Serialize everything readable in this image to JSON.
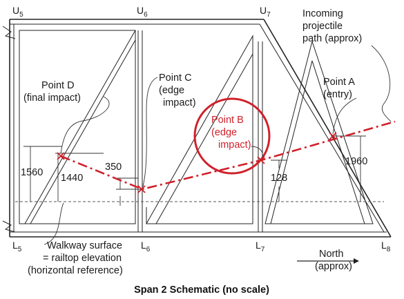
{
  "title": "Span 2 Schematic (no scale)",
  "nodes": {
    "u5": {
      "letter": "U",
      "sub": "5"
    },
    "u6": {
      "letter": "U",
      "sub": "6"
    },
    "u7": {
      "letter": "U",
      "sub": "7"
    },
    "l5": {
      "letter": "L",
      "sub": "5"
    },
    "l6": {
      "letter": "L",
      "sub": "6"
    },
    "l7": {
      "letter": "L",
      "sub": "7"
    },
    "l8": {
      "letter": "L",
      "sub": "8"
    }
  },
  "labels": {
    "incoming": [
      "Incoming",
      "projectile",
      "path (approx)"
    ],
    "point_a": [
      "Point A",
      "(entry)"
    ],
    "point_b": [
      "Point B",
      "(edge",
      "impact)"
    ],
    "point_c": [
      "Point C",
      "(edge",
      "impact)"
    ],
    "point_d": [
      "Point D",
      "(final impact)"
    ],
    "walkway": [
      "Walkway surface",
      "= railtop elevation",
      "(horizontal reference)"
    ],
    "north": [
      "North",
      "(approx)"
    ]
  },
  "dimensions": {
    "d1560": "1560",
    "d1440": "1440",
    "d350": "350",
    "d1960": "1960",
    "d128": "128"
  },
  "colors": {
    "path": "#d0202a",
    "line": "#222222"
  }
}
